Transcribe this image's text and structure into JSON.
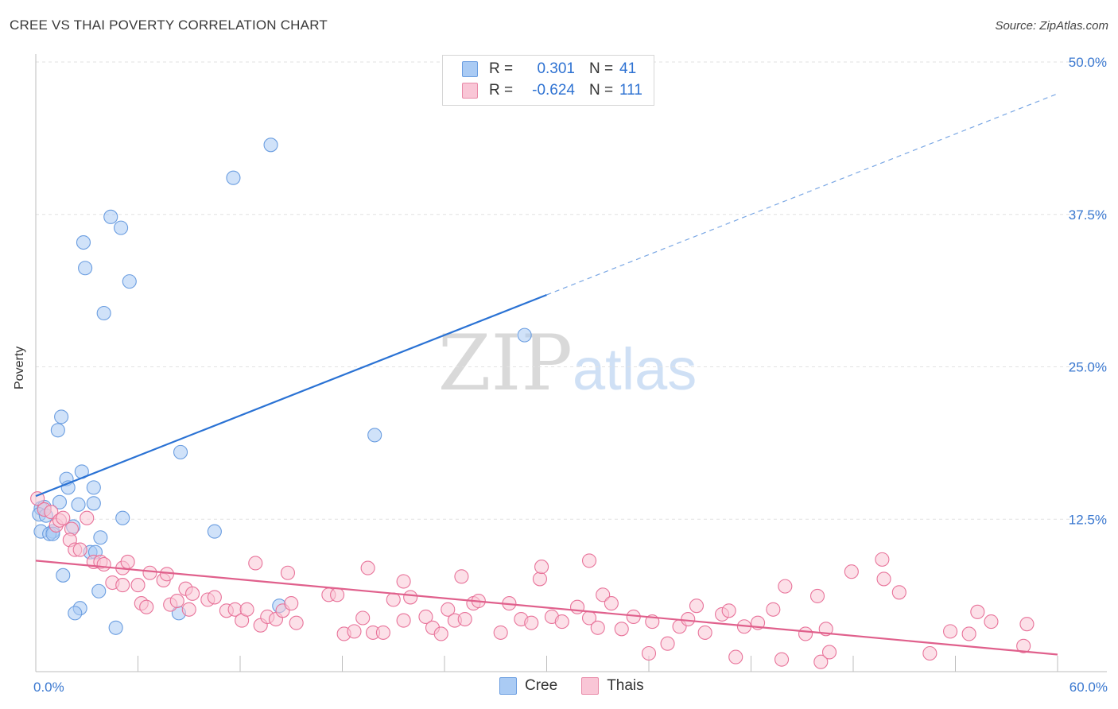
{
  "header": {
    "title": "CREE VS THAI POVERTY CORRELATION CHART",
    "source": "Source: ZipAtlas.com"
  },
  "watermark": {
    "zip": "ZIP",
    "atlas": "atlas"
  },
  "legend": {
    "rows": [
      {
        "r_label": "R =",
        "r_value": "0.301",
        "n_label": "N =",
        "n_value": "41",
        "color": "#aacbf4",
        "border": "#6a9de0"
      },
      {
        "r_label": "R =",
        "r_value": "-0.624",
        "n_label": "N =",
        "n_value": "111",
        "color": "#f9c6d6",
        "border": "#e88aa8"
      }
    ]
  },
  "bottom_legend": [
    {
      "label": "Cree",
      "color": "#aacbf4",
      "border": "#6a9de0"
    },
    {
      "label": "Thais",
      "color": "#f9c6d6",
      "border": "#e88aa8"
    }
  ],
  "chart_data": {
    "type": "scatter",
    "ylabel": "Poverty",
    "xlim": [
      0,
      60
    ],
    "ylim": [
      0,
      50
    ],
    "x_tick_labels": [
      "0.0%",
      "60.0%"
    ],
    "y_tick_labels": [
      "12.5%",
      "25.0%",
      "37.5%",
      "50.0%"
    ],
    "y_ticks": [
      12.5,
      25,
      37.5,
      50
    ],
    "grid": true,
    "legend_position": "top-center",
    "series": [
      {
        "name": "Cree",
        "color": "#6a9de0",
        "fill": "#aacbf4",
        "points": [
          [
            13.8,
            43.2
          ],
          [
            11.6,
            40.5
          ],
          [
            4.4,
            37.3
          ],
          [
            5.0,
            36.4
          ],
          [
            2.8,
            35.2
          ],
          [
            2.9,
            33.1
          ],
          [
            5.5,
            32.0
          ],
          [
            4.0,
            29.4
          ],
          [
            28.7,
            27.6
          ],
          [
            1.5,
            20.9
          ],
          [
            1.3,
            19.8
          ],
          [
            19.9,
            19.4
          ],
          [
            8.5,
            18.0
          ],
          [
            2.7,
            16.4
          ],
          [
            1.8,
            15.8
          ],
          [
            1.9,
            15.1
          ],
          [
            3.4,
            15.1
          ],
          [
            1.4,
            13.9
          ],
          [
            2.5,
            13.7
          ],
          [
            3.4,
            13.8
          ],
          [
            0.3,
            13.4
          ],
          [
            0.5,
            13.5
          ],
          [
            1.0,
            11.5
          ],
          [
            2.2,
            11.9
          ],
          [
            5.1,
            12.6
          ],
          [
            0.3,
            11.5
          ],
          [
            0.8,
            11.3
          ],
          [
            1.0,
            11.3
          ],
          [
            10.5,
            11.5
          ],
          [
            3.8,
            11.0
          ],
          [
            3.2,
            9.8
          ],
          [
            3.5,
            9.8
          ],
          [
            1.6,
            7.9
          ],
          [
            3.7,
            6.6
          ],
          [
            14.3,
            5.4
          ],
          [
            2.6,
            5.2
          ],
          [
            2.3,
            4.8
          ],
          [
            8.4,
            4.8
          ],
          [
            4.7,
            3.6
          ],
          [
            0.2,
            12.9
          ],
          [
            0.6,
            12.8
          ]
        ],
        "trend": {
          "x0": 0,
          "y0": 14.4,
          "x1": 30,
          "y1": 30.9,
          "x_dashed_end": 60,
          "y_dashed_end": 47.4
        }
      },
      {
        "name": "Thais",
        "color": "#e8739a",
        "fill": "#f9c6d6",
        "points": [
          [
            0.1,
            14.2
          ],
          [
            0.5,
            13.3
          ],
          [
            0.9,
            13.1
          ],
          [
            1.2,
            12.0
          ],
          [
            1.4,
            12.4
          ],
          [
            1.6,
            12.6
          ],
          [
            2.1,
            11.7
          ],
          [
            3.0,
            12.6
          ],
          [
            2.0,
            10.8
          ],
          [
            2.3,
            10.0
          ],
          [
            2.6,
            10.0
          ],
          [
            3.4,
            9.0
          ],
          [
            3.8,
            9.0
          ],
          [
            4.0,
            8.8
          ],
          [
            5.1,
            8.5
          ],
          [
            5.4,
            9.0
          ],
          [
            4.5,
            7.3
          ],
          [
            5.1,
            7.1
          ],
          [
            6.0,
            7.1
          ],
          [
            6.7,
            8.1
          ],
          [
            7.5,
            7.5
          ],
          [
            7.7,
            8.0
          ],
          [
            8.8,
            6.8
          ],
          [
            9.2,
            6.4
          ],
          [
            6.2,
            5.6
          ],
          [
            6.5,
            5.3
          ],
          [
            7.9,
            5.5
          ],
          [
            8.3,
            5.8
          ],
          [
            9.0,
            5.1
          ],
          [
            10.1,
            5.9
          ],
          [
            10.5,
            6.1
          ],
          [
            11.2,
            5.0
          ],
          [
            11.7,
            5.1
          ],
          [
            12.1,
            4.2
          ],
          [
            12.4,
            5.1
          ],
          [
            13.2,
            3.8
          ],
          [
            13.6,
            4.5
          ],
          [
            14.1,
            4.3
          ],
          [
            14.5,
            5.0
          ],
          [
            15.0,
            5.6
          ],
          [
            15.3,
            4.0
          ],
          [
            12.9,
            8.9
          ],
          [
            14.8,
            8.1
          ],
          [
            17.2,
            6.3
          ],
          [
            17.7,
            6.3
          ],
          [
            18.1,
            3.1
          ],
          [
            18.7,
            3.3
          ],
          [
            19.2,
            4.4
          ],
          [
            19.8,
            3.2
          ],
          [
            20.4,
            3.2
          ],
          [
            21.0,
            5.9
          ],
          [
            21.6,
            4.2
          ],
          [
            22.0,
            6.1
          ],
          [
            22.9,
            4.5
          ],
          [
            23.3,
            3.6
          ],
          [
            23.8,
            3.1
          ],
          [
            24.2,
            5.1
          ],
          [
            24.6,
            4.2
          ],
          [
            25.2,
            4.3
          ],
          [
            25.7,
            5.6
          ],
          [
            26.0,
            5.8
          ],
          [
            27.3,
            3.2
          ],
          [
            27.8,
            5.6
          ],
          [
            28.5,
            4.3
          ],
          [
            29.1,
            4.0
          ],
          [
            29.6,
            7.6
          ],
          [
            30.3,
            4.5
          ],
          [
            30.9,
            4.1
          ],
          [
            31.8,
            5.3
          ],
          [
            32.5,
            4.4
          ],
          [
            33.0,
            3.6
          ],
          [
            33.3,
            6.3
          ],
          [
            33.8,
            5.6
          ],
          [
            34.4,
            3.5
          ],
          [
            35.1,
            4.5
          ],
          [
            36.0,
            1.5
          ],
          [
            36.2,
            4.1
          ],
          [
            37.1,
            2.3
          ],
          [
            37.8,
            3.7
          ],
          [
            38.3,
            4.3
          ],
          [
            38.8,
            5.4
          ],
          [
            39.3,
            3.2
          ],
          [
            40.3,
            4.7
          ],
          [
            40.7,
            5.0
          ],
          [
            41.1,
            1.2
          ],
          [
            41.6,
            3.7
          ],
          [
            42.4,
            4.0
          ],
          [
            43.3,
            5.1
          ],
          [
            44.0,
            7.0
          ],
          [
            45.2,
            3.1
          ],
          [
            46.1,
            0.8
          ],
          [
            46.4,
            3.5
          ],
          [
            43.8,
            1.0
          ],
          [
            45.9,
            6.2
          ],
          [
            46.6,
            1.6
          ],
          [
            49.7,
            9.2
          ],
          [
            50.7,
            6.5
          ],
          [
            52.5,
            1.5
          ],
          [
            53.7,
            3.3
          ],
          [
            54.8,
            3.1
          ],
          [
            55.3,
            4.9
          ],
          [
            56.1,
            4.1
          ],
          [
            58.0,
            2.1
          ],
          [
            58.2,
            3.9
          ],
          [
            49.8,
            7.6
          ],
          [
            47.9,
            8.2
          ],
          [
            32.5,
            9.1
          ],
          [
            29.7,
            8.6
          ],
          [
            25.0,
            7.8
          ],
          [
            21.6,
            7.4
          ],
          [
            19.5,
            8.5
          ]
        ],
        "trend": {
          "x0": 0,
          "y0": 9.1,
          "x1": 60,
          "y1": 1.4
        }
      }
    ]
  }
}
